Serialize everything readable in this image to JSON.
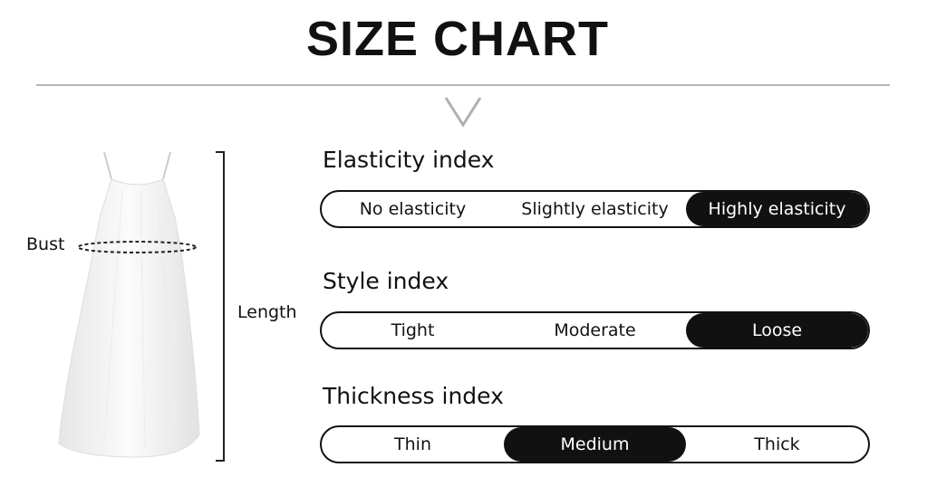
{
  "title": "SIZE CHART",
  "measure_labels": {
    "bust": "Bust",
    "length": "Length"
  },
  "indices": [
    {
      "title": "Elasticity index",
      "options": [
        "No elasticity",
        "Slightly elasticity",
        "Highly elasticity"
      ],
      "selected": 2
    },
    {
      "title": "Style index",
      "options": [
        "Tight",
        "Moderate",
        "Loose"
      ],
      "selected": 2
    },
    {
      "title": "Thickness index",
      "options": [
        "Thin",
        "Medium",
        "Thick"
      ],
      "selected": 1
    }
  ],
  "colors": {
    "selected_bg": "#111111",
    "selected_text": "#ffffff",
    "rule": "#b5b5b5"
  }
}
